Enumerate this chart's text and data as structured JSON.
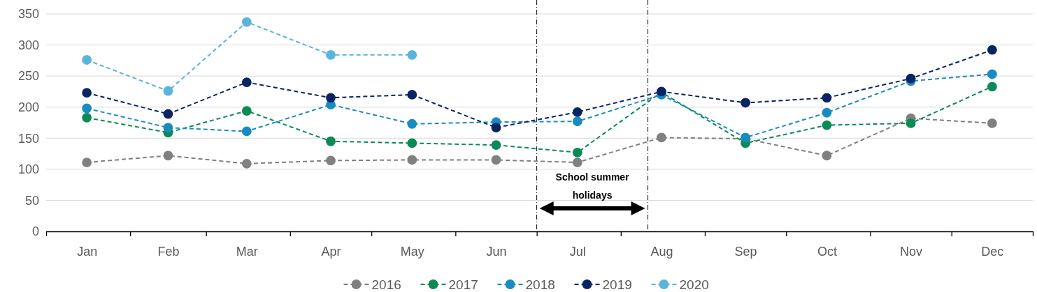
{
  "chart_data": {
    "type": "line",
    "x": [
      "--01-16",
      "--02-15",
      "--03-16",
      "--04-16",
      "--05-16",
      "--06-16",
      "--07-16",
      "--08-16",
      "--09-16",
      "--10-16",
      "--11-16",
      "--12-16"
    ],
    "series": [
      {
        "name": "2016",
        "color": "#808080",
        "values": [
          111,
          122,
          109,
          114,
          115,
          115,
          111,
          151,
          149,
          122,
          182,
          174
        ]
      },
      {
        "name": "2017",
        "color": "#0a8a55",
        "values": [
          183,
          159,
          194,
          145,
          142,
          139,
          127,
          224,
          142,
          171,
          174,
          233
        ]
      },
      {
        "name": "2018",
        "color": "#1a8bbf",
        "values": [
          198,
          167,
          161,
          204,
          173,
          176,
          177,
          220,
          151,
          191,
          242,
          253
        ]
      },
      {
        "name": "2019",
        "color": "#0a2463",
        "values": [
          223,
          189,
          240,
          215,
          220,
          167,
          192,
          225,
          207,
          215,
          246,
          292
        ]
      },
      {
        "name": "2020",
        "color": "#5ab4dc",
        "values": [
          276,
          226,
          337,
          284,
          284,
          null,
          null,
          null,
          null,
          null,
          null,
          null
        ]
      }
    ],
    "xlim": [
      "--01-01",
      "--12-31"
    ],
    "xticks": [
      {
        "value": "--01-01",
        "label": null
      },
      {
        "value": "--01-16",
        "label": "Jan"
      },
      {
        "value": "--02-01",
        "label": null
      },
      {
        "value": "--02-15",
        "label": "Feb"
      },
      {
        "value": "--03-01",
        "label": null
      },
      {
        "value": "--03-16",
        "label": "Mar"
      },
      {
        "value": "--04-01",
        "label": null
      },
      {
        "value": "--04-16",
        "label": "Apr"
      },
      {
        "value": "--05-01",
        "label": null
      },
      {
        "value": "--05-16",
        "label": "May"
      },
      {
        "value": "--06-01",
        "label": null
      },
      {
        "value": "--06-16",
        "label": "Jun"
      },
      {
        "value": "--07-01",
        "label": null
      },
      {
        "value": "--07-16",
        "label": "Jul"
      },
      {
        "value": "--08-01",
        "label": null
      },
      {
        "value": "--08-16",
        "label": "Aug"
      },
      {
        "value": "--09-01",
        "label": null
      },
      {
        "value": "--09-16",
        "label": "Sep"
      },
      {
        "value": "--10-01",
        "label": null
      },
      {
        "value": "--10-16",
        "label": "Oct"
      },
      {
        "value": "--11-01",
        "label": null
      },
      {
        "value": "--11-16",
        "label": "Nov"
      },
      {
        "value": "--12-01",
        "label": null
      },
      {
        "value": "--12-16",
        "label": "Dec"
      },
      {
        "value": "--12-31",
        "label": null
      }
    ],
    "ylim": [
      0,
      350
    ],
    "yticks": [
      0,
      50,
      100,
      150,
      200,
      250,
      300,
      350
    ],
    "grid": "y",
    "legend": "bottom",
    "marker": "circle",
    "line_style": "dashed",
    "ref_lines": [
      {
        "axis": "x",
        "value": "--07-01",
        "color": "#000000",
        "line_style": "dashed"
      },
      {
        "axis": "x",
        "value": "--08-11",
        "color": "#000000",
        "line_style": "dashed"
      }
    ],
    "annotations": [
      "School summer holidays"
    ]
  }
}
